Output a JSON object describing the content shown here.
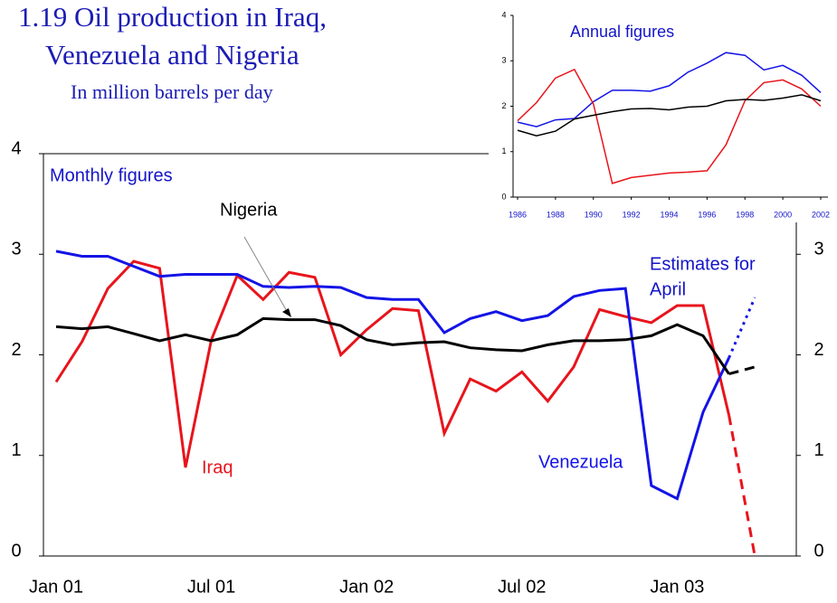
{
  "chart_data": [
    {
      "type": "line",
      "title": [
        "1.19 Oil production in Iraq,",
        "Venezuela and Nigeria"
      ],
      "subtitle": "In million barrels per day",
      "categories": [
        "Jan 01",
        null,
        null,
        null,
        null,
        null,
        "Jul 01",
        null,
        null,
        null,
        null,
        null,
        "Jan 02",
        null,
        null,
        null,
        null,
        null,
        "Jul 02",
        null,
        null,
        null,
        null,
        null,
        "Jan 03",
        null,
        null,
        null
      ],
      "series": [
        {
          "name": "Iraq",
          "color": "#e8141c",
          "estimate_from": 26,
          "estimate_style": "dashed",
          "values": [
            1.73,
            2.13,
            2.66,
            2.93,
            2.86,
            0.88,
            2.15,
            2.79,
            2.55,
            2.82,
            2.77,
            2.0,
            2.25,
            2.46,
            2.44,
            1.22,
            1.76,
            1.64,
            1.83,
            1.54,
            1.88,
            2.45,
            2.38,
            2.32,
            2.49,
            2.49,
            1.4,
            0
          ]
        },
        {
          "name": "Venezuela",
          "color": "#1414e6",
          "estimate_from": 26,
          "estimate_style": "dotted",
          "values": [
            3.03,
            2.98,
            2.98,
            2.88,
            2.78,
            2.8,
            2.8,
            2.8,
            2.68,
            2.67,
            2.68,
            2.67,
            2.57,
            2.55,
            2.55,
            2.22,
            2.36,
            2.43,
            2.34,
            2.39,
            2.58,
            2.64,
            2.66,
            0.7,
            0.57,
            1.43,
            1.97,
            2.57
          ]
        },
        {
          "name": "Nigeria",
          "color": "#000000",
          "estimate_from": 26,
          "estimate_style": "dashed",
          "values": [
            2.28,
            2.26,
            2.28,
            2.21,
            2.14,
            2.2,
            2.14,
            2.2,
            2.36,
            2.35,
            2.35,
            2.29,
            2.15,
            2.1,
            2.12,
            2.13,
            2.07,
            2.05,
            2.04,
            2.1,
            2.14,
            2.14,
            2.15,
            2.19,
            2.3,
            2.19,
            1.81,
            1.88
          ]
        }
      ],
      "annotations": [
        "Monthly figures",
        "Estimates for",
        "April"
      ],
      "ylim": [
        0,
        4
      ],
      "yticks": [
        0,
        1,
        2,
        3,
        4
      ],
      "y2lim": [
        0,
        4
      ],
      "y2ticks": [
        0,
        1,
        2,
        3
      ]
    },
    {
      "type": "line",
      "annotations": [
        "Annual figures"
      ],
      "x": [
        1986,
        1987,
        1988,
        1989,
        1990,
        1991,
        1992,
        1993,
        1994,
        1995,
        1996,
        1997,
        1998,
        1999,
        2000,
        2001,
        2002
      ],
      "xlim": [
        1986,
        2002
      ],
      "xticks": [
        1986,
        1988,
        1990,
        1992,
        1994,
        1996,
        1998,
        2000,
        2002
      ],
      "ylim": [
        0,
        4
      ],
      "yticks": [
        0,
        1,
        2,
        3,
        4
      ],
      "series": [
        {
          "color": "#1414e6",
          "values": [
            1.65,
            1.55,
            1.7,
            1.73,
            2.1,
            2.35,
            2.35,
            2.33,
            2.45,
            2.75,
            2.95,
            3.18,
            3.12,
            2.8,
            2.9,
            2.68,
            2.3
          ]
        },
        {
          "color": "#e8141c",
          "values": [
            1.68,
            2.08,
            2.62,
            2.81,
            2.05,
            0.3,
            0.43,
            0.48,
            0.53,
            0.55,
            0.58,
            1.15,
            2.12,
            2.52,
            2.58,
            2.38,
            2.0
          ]
        },
        {
          "color": "#000000",
          "values": [
            1.47,
            1.35,
            1.45,
            1.72,
            1.8,
            1.88,
            1.94,
            1.95,
            1.92,
            1.98,
            2.0,
            2.12,
            2.15,
            2.13,
            2.18,
            2.25,
            2.12
          ]
        }
      ]
    }
  ]
}
